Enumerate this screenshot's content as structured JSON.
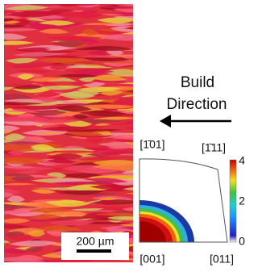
{
  "annotation": {
    "line1": "Build",
    "line2": "Direction"
  },
  "scale_bar": {
    "label": "200 µm"
  },
  "pole_figure": {
    "corners": [
      "[1̄01]",
      "[1̄11]",
      "[001]",
      "[011]"
    ],
    "colorbar": {
      "range": [
        0,
        4
      ],
      "ticks": [
        0,
        2,
        4
      ]
    }
  }
}
